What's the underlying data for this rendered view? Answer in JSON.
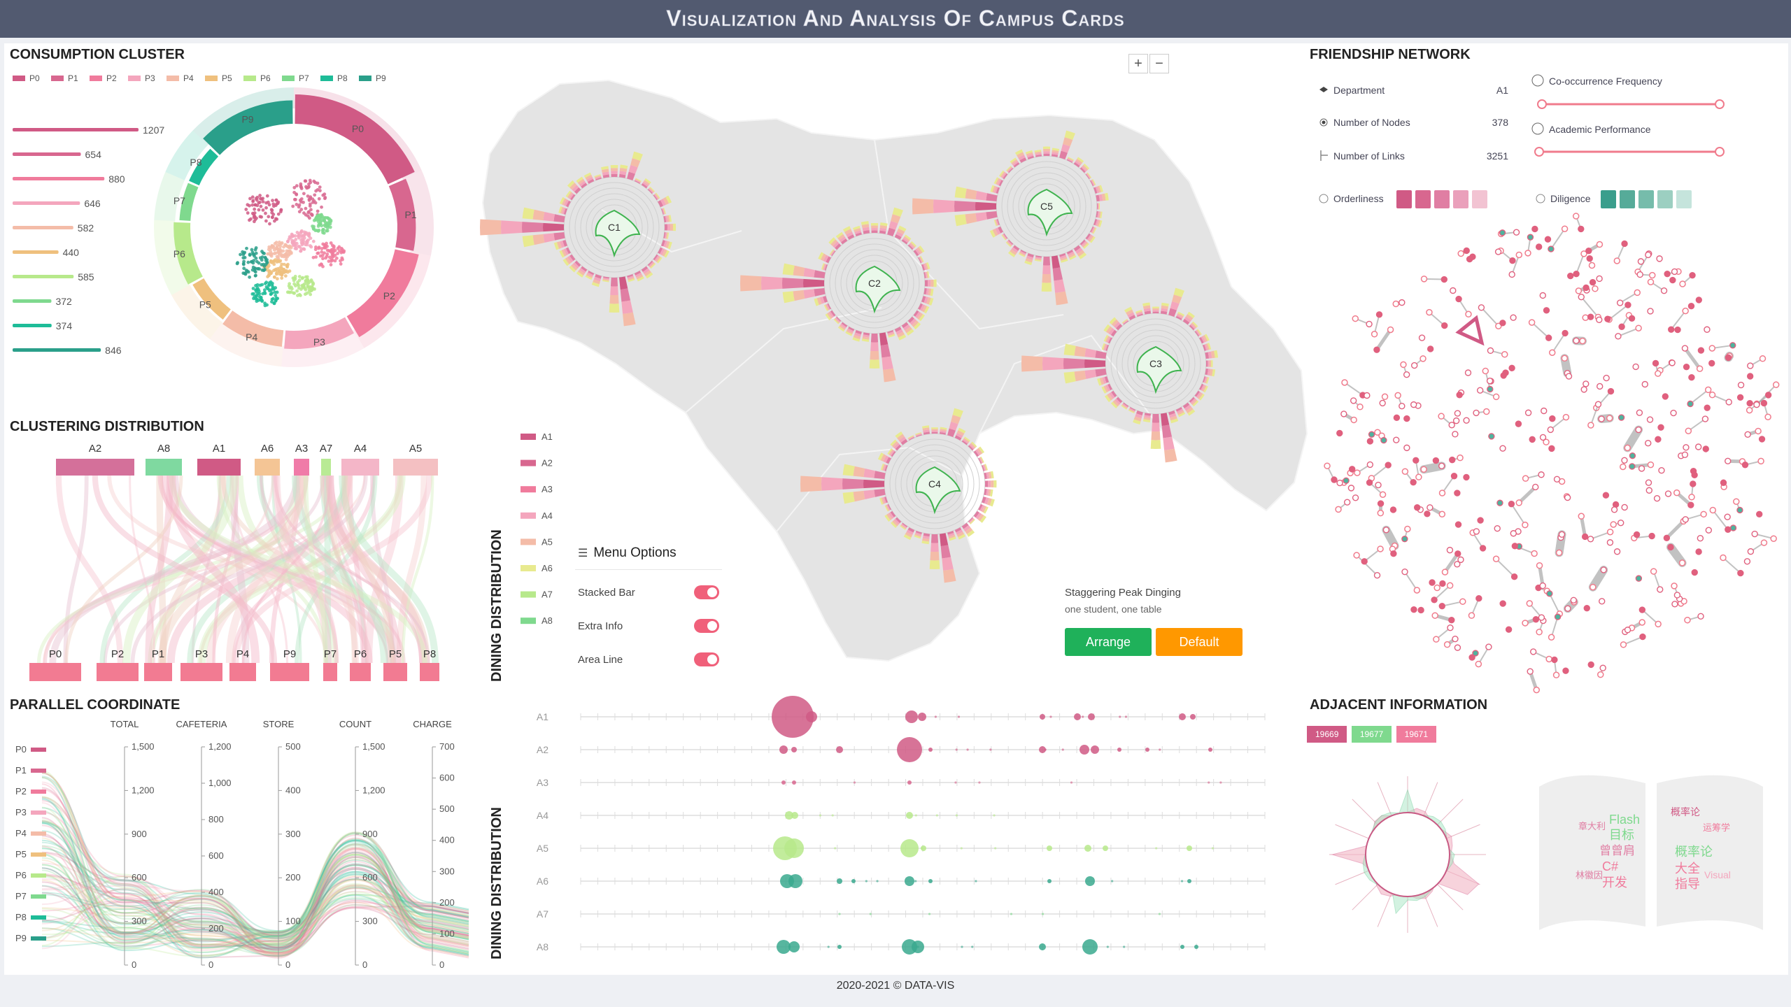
{
  "header": {
    "title": "Visualization And Analysis Of Campus Cards"
  },
  "footer": {
    "copyright": "2020-2021 © DATA-VIS"
  },
  "colors": {
    "header_bg": "#525a70",
    "clusters": [
      "#d05a85",
      "#d8678f",
      "#f07b9c",
      "#f4a6bd",
      "#f4bca8",
      "#efc07e",
      "#b7e98b",
      "#7fd98e",
      "#1ebc98",
      "#2a9f8a"
    ],
    "green_button": "#1fb15a",
    "orange_button": "#ff9800"
  },
  "consumption_cluster": {
    "title": "CONSUMPTION CLUSTER",
    "legend": [
      "P0",
      "P1",
      "P2",
      "P3",
      "P4",
      "P5",
      "P6",
      "P7",
      "P8",
      "P9"
    ],
    "values": [
      1207,
      654,
      880,
      646,
      582,
      440,
      585,
      372,
      374,
      846
    ],
    "ring_labels": [
      "P0",
      "P1",
      "P2",
      "P3",
      "P4",
      "P5",
      "P6",
      "P7",
      "P8",
      "P9"
    ]
  },
  "clustering_distribution": {
    "title": "CLUSTERING DISTRIBUTION",
    "top_labels": [
      "A2",
      "A8",
      "A1",
      "A6",
      "A3",
      "A7",
      "A4",
      "A5"
    ],
    "bottom_labels": [
      "P0",
      "P2",
      "P1",
      "P3",
      "P4",
      "P9",
      "P7",
      "P6",
      "P5",
      "P8"
    ]
  },
  "parallel_coordinate": {
    "title": "PARALLEL COORDINATE",
    "axes": [
      {
        "name": "TOTAL",
        "ticks": [
          "1,500",
          "1,200",
          "900",
          "600",
          "300",
          "0"
        ]
      },
      {
        "name": "CAFETERIA",
        "ticks": [
          "1,200",
          "1,000",
          "800",
          "600",
          "400",
          "200",
          "0"
        ]
      },
      {
        "name": "STORE",
        "ticks": [
          "500",
          "400",
          "300",
          "200",
          "100",
          "0"
        ]
      },
      {
        "name": "COUNT",
        "ticks": [
          "1,500",
          "1,200",
          "900",
          "600",
          "300",
          "0"
        ]
      },
      {
        "name": "CHARGE",
        "ticks": [
          "700",
          "600",
          "500",
          "400",
          "300",
          "200",
          "100",
          "0"
        ]
      }
    ],
    "legend": [
      "P0",
      "P1",
      "P2",
      "P3",
      "P4",
      "P5",
      "P6",
      "P7",
      "P8",
      "P9"
    ]
  },
  "dining_map": {
    "side_title": "DINING DISTRIBUTION",
    "legend": [
      "A1",
      "A2",
      "A3",
      "A4",
      "A5",
      "A6",
      "A7",
      "A8"
    ],
    "canteens": [
      "C1",
      "C2",
      "C3",
      "C4",
      "C5"
    ],
    "zoom_in": "+",
    "zoom_out": "−",
    "menu": {
      "title": "Menu Options",
      "items": [
        {
          "label": "Stacked Bar",
          "on": true
        },
        {
          "label": "Extra Info",
          "on": true
        },
        {
          "label": "Area Line",
          "on": true
        }
      ]
    },
    "staggering_title": "Staggering Peak Dinging",
    "staggering_subtitle": "one student, one table",
    "arrange_button": "Arrange",
    "default_button": "Default"
  },
  "dining_timeline": {
    "side_title": "DINING DISTRIBUTION",
    "rows": [
      "A1",
      "A2",
      "A3",
      "A4",
      "A5",
      "A6",
      "A7",
      "A8"
    ]
  },
  "friendship_network": {
    "title": "FRIENDSHIP NETWORK",
    "department_label": "Department",
    "department_value": "A1",
    "nodes_label": "Number of Nodes",
    "nodes_value": "378",
    "links_label": "Number of Links",
    "links_value": "3251",
    "cooccurrence_label": "Co-occurrence Frequency",
    "academic_label": "Academic Performance",
    "orderliness_label": "Orderliness",
    "diligence_label": "Diligence",
    "orderliness_colors": [
      "#d05a85",
      "#d8678f",
      "#e07ea3",
      "#eaa0bb",
      "#f2c3d2"
    ],
    "diligence_colors": [
      "#3a9e8c",
      "#56ab99",
      "#76bcab",
      "#9ccfc1",
      "#c5e4dc"
    ]
  },
  "adjacent_information": {
    "title": "ADJACENT INFORMATION",
    "tags": [
      {
        "label": "19669",
        "color": "#d05a85"
      },
      {
        "label": "19677",
        "color": "#7fd98e"
      },
      {
        "label": "19671",
        "color": "#f07b9c"
      }
    ],
    "left_words": [
      "Flash",
      "章大利",
      "目标",
      "曾曾肩",
      "C#",
      "林徽因",
      "开发"
    ],
    "right_words": [
      "概率论",
      "运筹学",
      "概率论",
      "大全",
      "Visual",
      "指导"
    ]
  }
}
